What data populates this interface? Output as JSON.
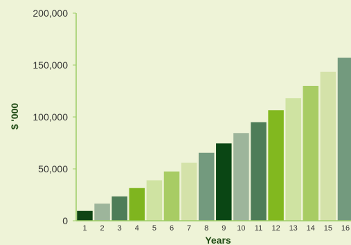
{
  "chart_data": {
    "type": "bar",
    "title": "",
    "xlabel": "Years",
    "ylabel": "$ '000",
    "ylim": [
      0,
      200000
    ],
    "yticks": [
      0,
      50000,
      100000,
      150000,
      200000
    ],
    "ytick_labels": [
      "0",
      "50,000",
      "100,000",
      "150,000",
      "200,000"
    ],
    "categories": [
      "1",
      "2",
      "3",
      "4",
      "5",
      "6",
      "7",
      "8",
      "9",
      "10",
      "11",
      "12",
      "13",
      "14",
      "15",
      "16"
    ],
    "values": [
      9500,
      16500,
      23500,
      31500,
      39000,
      47500,
      56000,
      65500,
      74500,
      84500,
      95000,
      106500,
      118000,
      130000,
      143500,
      157000
    ],
    "bar_colors": [
      "#0f4414",
      "#9db59b",
      "#4e7d58",
      "#7fb51f",
      "#cfe3a2",
      "#a8cc64",
      "#d4e2a9",
      "#739a7e",
      "#0a4614",
      "#9db59b",
      "#4e7d58",
      "#82b81f",
      "#cfe3a2",
      "#a8cc64",
      "#d4e2a9",
      "#739a7e"
    ],
    "axis_color": "#9ccc65",
    "grid": false,
    "legend": "none"
  }
}
